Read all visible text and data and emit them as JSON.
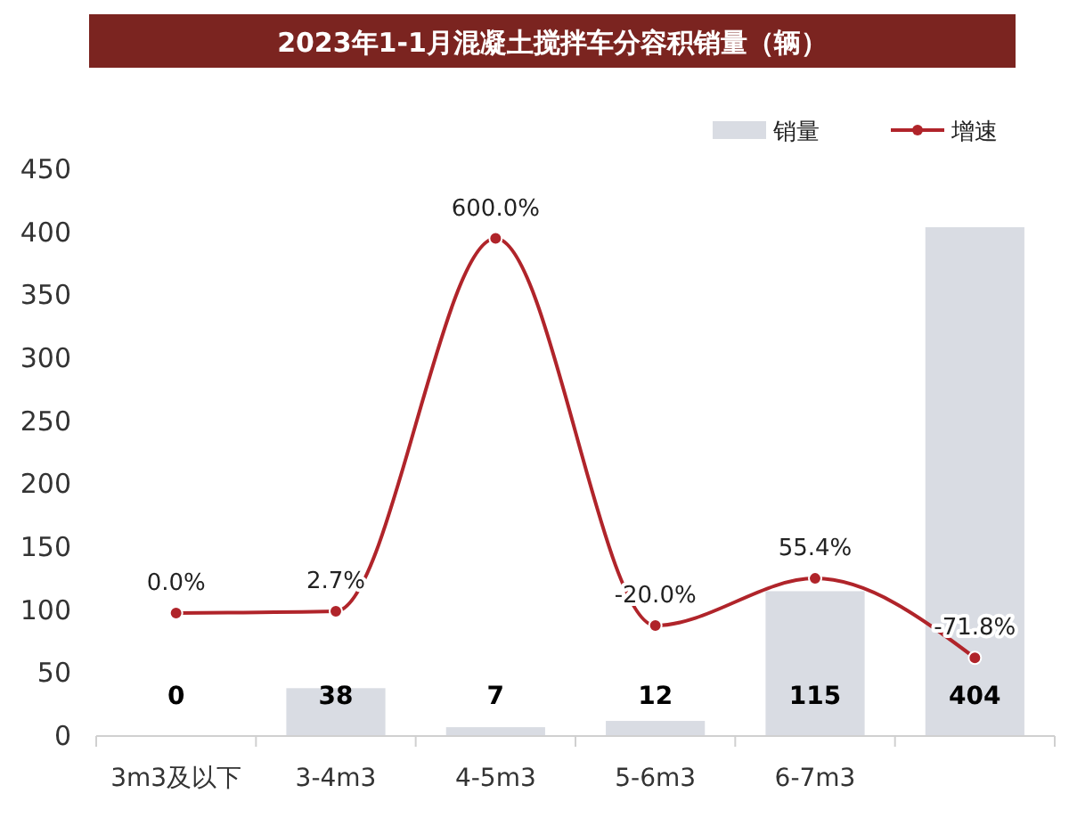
{
  "chart_data": {
    "type": "bar",
    "title": "2023年1-1月混凝土搅拌车分容积销量（辆）",
    "categories": [
      "3m3及以下",
      "3-4m3",
      "4-5m3",
      "5-6m3",
      "6-7m3",
      null
    ],
    "series": [
      {
        "name": "销量",
        "color": "#d9dce3",
        "values": [
          0,
          38,
          7,
          12,
          115,
          404
        ]
      },
      {
        "name": "增速",
        "type": "line",
        "axis": "y2",
        "color": "#b0242a",
        "marker": "circle",
        "values": [
          0.0,
          2.7,
          600.0,
          -20.0,
          55.4,
          -71.8
        ],
        "value_labels": [
          "0.0%",
          "2.7%",
          "600.0%",
          "-20.0%",
          "55.4%",
          "-71.8%"
        ]
      }
    ],
    "ylim": [
      0,
      450
    ],
    "yticks": [
      0,
      50,
      100,
      150,
      200,
      250,
      300,
      350,
      400,
      450
    ],
    "data_labels": true,
    "legend": "top right",
    "grid": false
  }
}
